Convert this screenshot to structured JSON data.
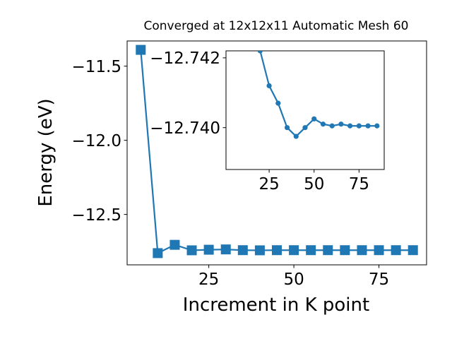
{
  "chart_data": [
    {
      "type": "line",
      "title": "Converged at 12x12x11 Automatic Mesh 60",
      "xlabel": "Increment in K point",
      "ylabel": "Energy (eV)",
      "xlim": [
        1,
        89
      ],
      "ylim": [
        -12.84,
        -11.33
      ],
      "xticks": [
        25,
        50,
        75
      ],
      "xtick_labels": [
        "25",
        "50",
        "75"
      ],
      "yticks": [
        -11.5,
        -12.0,
        -12.5
      ],
      "ytick_labels": [
        "−11.5",
        "−12.0",
        "−12.5"
      ],
      "grid": false,
      "marker": "square",
      "color": "#1f77b4",
      "x": [
        5,
        10,
        15,
        20,
        25,
        30,
        35,
        40,
        45,
        50,
        55,
        60,
        65,
        70,
        75,
        80,
        85
      ],
      "y": [
        -11.39,
        -12.761,
        -12.705,
        -12.742,
        -12.738,
        -12.736,
        -12.741,
        -12.742,
        -12.741,
        -12.741,
        -12.741,
        -12.741,
        -12.741,
        -12.741,
        -12.741,
        -12.741,
        -12.741
      ]
    },
    {
      "type": "line",
      "title": "",
      "xlabel": "",
      "ylabel": "",
      "xlim": [
        1,
        89
      ],
      "ylim": [
        -12.7388,
        -12.7422
      ],
      "xticks": [
        25,
        50,
        75
      ],
      "xtick_labels": [
        "25",
        "50",
        "75"
      ],
      "yticks": [
        -12.742,
        -12.74
      ],
      "ytick_labels": [
        "−12.742",
        "−12.740"
      ],
      "grid": false,
      "marker": "circle",
      "color": "#1f77b4",
      "x": [
        20,
        25,
        30,
        35,
        40,
        45,
        50,
        55,
        60,
        65,
        70,
        75,
        80,
        85
      ],
      "y": [
        -12.7422,
        -12.7412,
        -12.7407,
        -12.74,
        -12.73975,
        -12.74,
        -12.74025,
        -12.7401,
        -12.74005,
        -12.7401,
        -12.74005,
        -12.74005,
        -12.74005,
        -12.74005
      ]
    }
  ]
}
